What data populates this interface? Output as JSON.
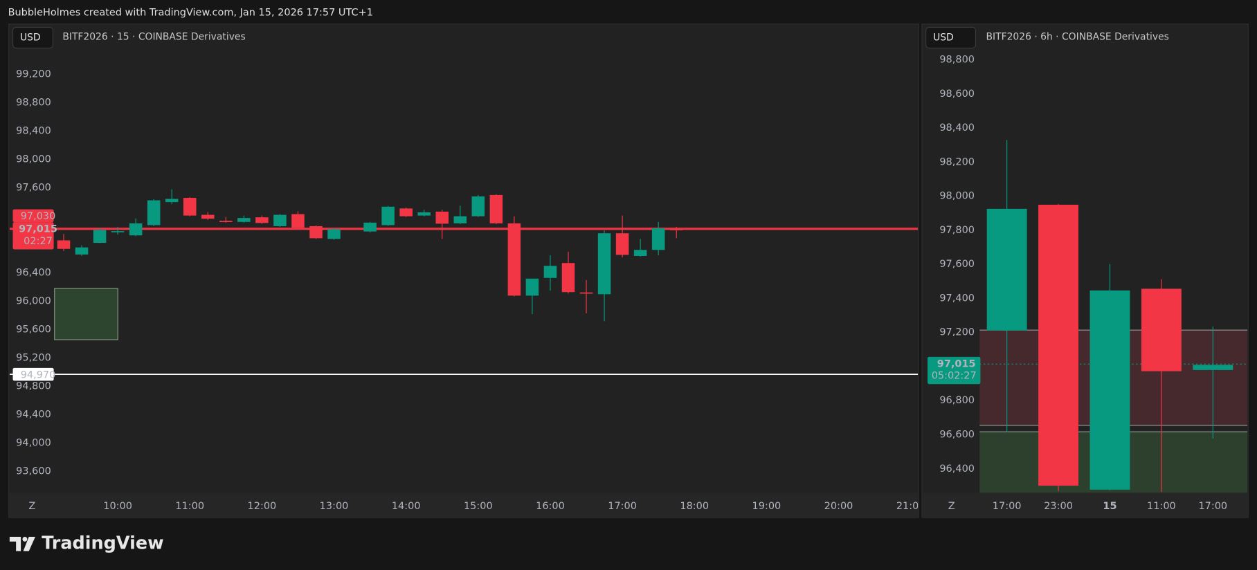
{
  "header": {
    "text": "BubbleHolmes created with TradingView.com, Jan 15, 2026 17:57 UTC+1"
  },
  "footer": {
    "brand": "TradingView"
  },
  "chart_data": [
    {
      "type": "candlestick",
      "currency": "USD",
      "title": "BITF2026 · 15 · COINBASE Derivatives",
      "up_color": "#089981",
      "down_color": "#f23645",
      "x": [
        9.25,
        9.5,
        9.75,
        10,
        10.25,
        10.5,
        10.75,
        11,
        11.25,
        11.5,
        11.75,
        12,
        12.25,
        12.5,
        12.75,
        13,
        13.5,
        13.75,
        14,
        14.25,
        14.5,
        14.75,
        15,
        15.25,
        15.5,
        15.75,
        16,
        16.25,
        16.5,
        16.75,
        17,
        17.25,
        17.5,
        17.75
      ],
      "open": [
        96860,
        96660,
        96825,
        96975,
        96930,
        97075,
        97400,
        97460,
        97220,
        97135,
        97120,
        97185,
        97060,
        97230,
        97060,
        96880,
        96985,
        97075,
        97310,
        97210,
        97265,
        97100,
        97200,
        97500,
        97100,
        96080,
        96330,
        96540,
        96125,
        96100,
        96960,
        96640,
        96725,
        97020
      ],
      "high": [
        96950,
        96790,
        97040,
        97050,
        97170,
        97440,
        97580,
        97470,
        97260,
        97190,
        97210,
        97210,
        97230,
        97270,
        97070,
        97030,
        97120,
        97345,
        97320,
        97290,
        97290,
        97350,
        97500,
        97510,
        97200,
        96320,
        96650,
        96700,
        96300,
        97000,
        97210,
        96880,
        97120,
        97050
      ],
      "low": [
        96710,
        96640,
        96820,
        96940,
        96920,
        97060,
        97370,
        97200,
        97150,
        97110,
        97110,
        97095,
        97050,
        97030,
        96880,
        96870,
        96970,
        97065,
        97190,
        97200,
        96880,
        97090,
        97190,
        97090,
        96070,
        95820,
        96150,
        96110,
        95830,
        95720,
        96620,
        96630,
        96650,
        96890
      ],
      "close": [
        96740,
        96760,
        97005,
        96990,
        97100,
        97425,
        97445,
        97210,
        97165,
        97125,
        97175,
        97105,
        97220,
        97040,
        96890,
        97017,
        97110,
        97335,
        97200,
        97255,
        97095,
        97200,
        97480,
        97100,
        96080,
        96320,
        96500,
        96130,
        96120,
        96960,
        96655,
        96725,
        97030,
        97015
      ],
      "xlim": [
        8.5,
        21.1
      ],
      "xticks": [
        {
          "value": 10,
          "label": "10:00"
        },
        {
          "value": 11,
          "label": "11:00"
        },
        {
          "value": 12,
          "label": "12:00"
        },
        {
          "value": 13,
          "label": "13:00"
        },
        {
          "value": 14,
          "label": "14:00"
        },
        {
          "value": 15,
          "label": "15:00"
        },
        {
          "value": 16,
          "label": "16:00"
        },
        {
          "value": 17,
          "label": "17:00"
        },
        {
          "value": 18,
          "label": "18:00"
        },
        {
          "value": 19,
          "label": "19:00"
        },
        {
          "value": 20,
          "label": "20:00"
        },
        {
          "value": 21,
          "label": "21:00"
        }
      ],
      "ylim": [
        93300,
        99550
      ],
      "yticks": [
        {
          "value": 99200,
          "label": "99,200"
        },
        {
          "value": 98800,
          "label": "98,800"
        },
        {
          "value": 98400,
          "label": "98,400"
        },
        {
          "value": 98000,
          "label": "98,000"
        },
        {
          "value": 97600,
          "label": "97,600"
        },
        {
          "value": 96400,
          "label": "96,400"
        },
        {
          "value": 96000,
          "label": "96,000"
        },
        {
          "value": 95600,
          "label": "95,600"
        },
        {
          "value": 95200,
          "label": "95,200"
        },
        {
          "value": 94800,
          "label": "94,800"
        },
        {
          "value": 94400,
          "label": "94,400"
        },
        {
          "value": 94000,
          "label": "94,000"
        },
        {
          "value": 93600,
          "label": "93,600"
        }
      ],
      "timezone_label": "Z",
      "last_price": {
        "value": 97015,
        "label": "97,015",
        "color": "#f23645"
      },
      "countdown": "02:27",
      "markers": [
        {
          "value": 97030,
          "label": "97,030",
          "color": "#f23645"
        },
        {
          "value": 94970,
          "label": "94,970",
          "color": "#ffffff"
        }
      ]
    },
    {
      "type": "candlestick",
      "currency": "USD",
      "title": "BITF2026 · 6h · COINBASE Derivatives",
      "up_color": "#089981",
      "down_color": "#f23645",
      "categories": [
        "17:00",
        "23:00",
        "15",
        "11:00",
        "17:00"
      ],
      "open": [
        97212,
        97950,
        96278,
        97457,
        96980
      ],
      "high": [
        98330,
        97955,
        97602,
        97513,
        97236
      ],
      "low": [
        96616,
        96270,
        96275,
        96264,
        96578
      ],
      "close": [
        97926,
        96301,
        97447,
        96973,
        97010
      ],
      "ylim": [
        96260,
        98860
      ],
      "yticks": [
        {
          "value": 98800,
          "label": "98,800"
        },
        {
          "value": 98600,
          "label": "98,600"
        },
        {
          "value": 98400,
          "label": "98,400"
        },
        {
          "value": 98200,
          "label": "98,200"
        },
        {
          "value": 98000,
          "label": "98,000"
        },
        {
          "value": 97800,
          "label": "97,800"
        },
        {
          "value": 97600,
          "label": "97,600"
        },
        {
          "value": 97400,
          "label": "97,400"
        },
        {
          "value": 97200,
          "label": "97,200"
        },
        {
          "value": 96800,
          "label": "96,800"
        },
        {
          "value": 96600,
          "label": "96,600"
        },
        {
          "value": 96400,
          "label": "96,400"
        }
      ],
      "timezone_label": "Z",
      "last_price": {
        "value": 97015,
        "label": "97,015",
        "color": "#089981"
      },
      "countdown": "05:02:27",
      "markers": []
    }
  ]
}
